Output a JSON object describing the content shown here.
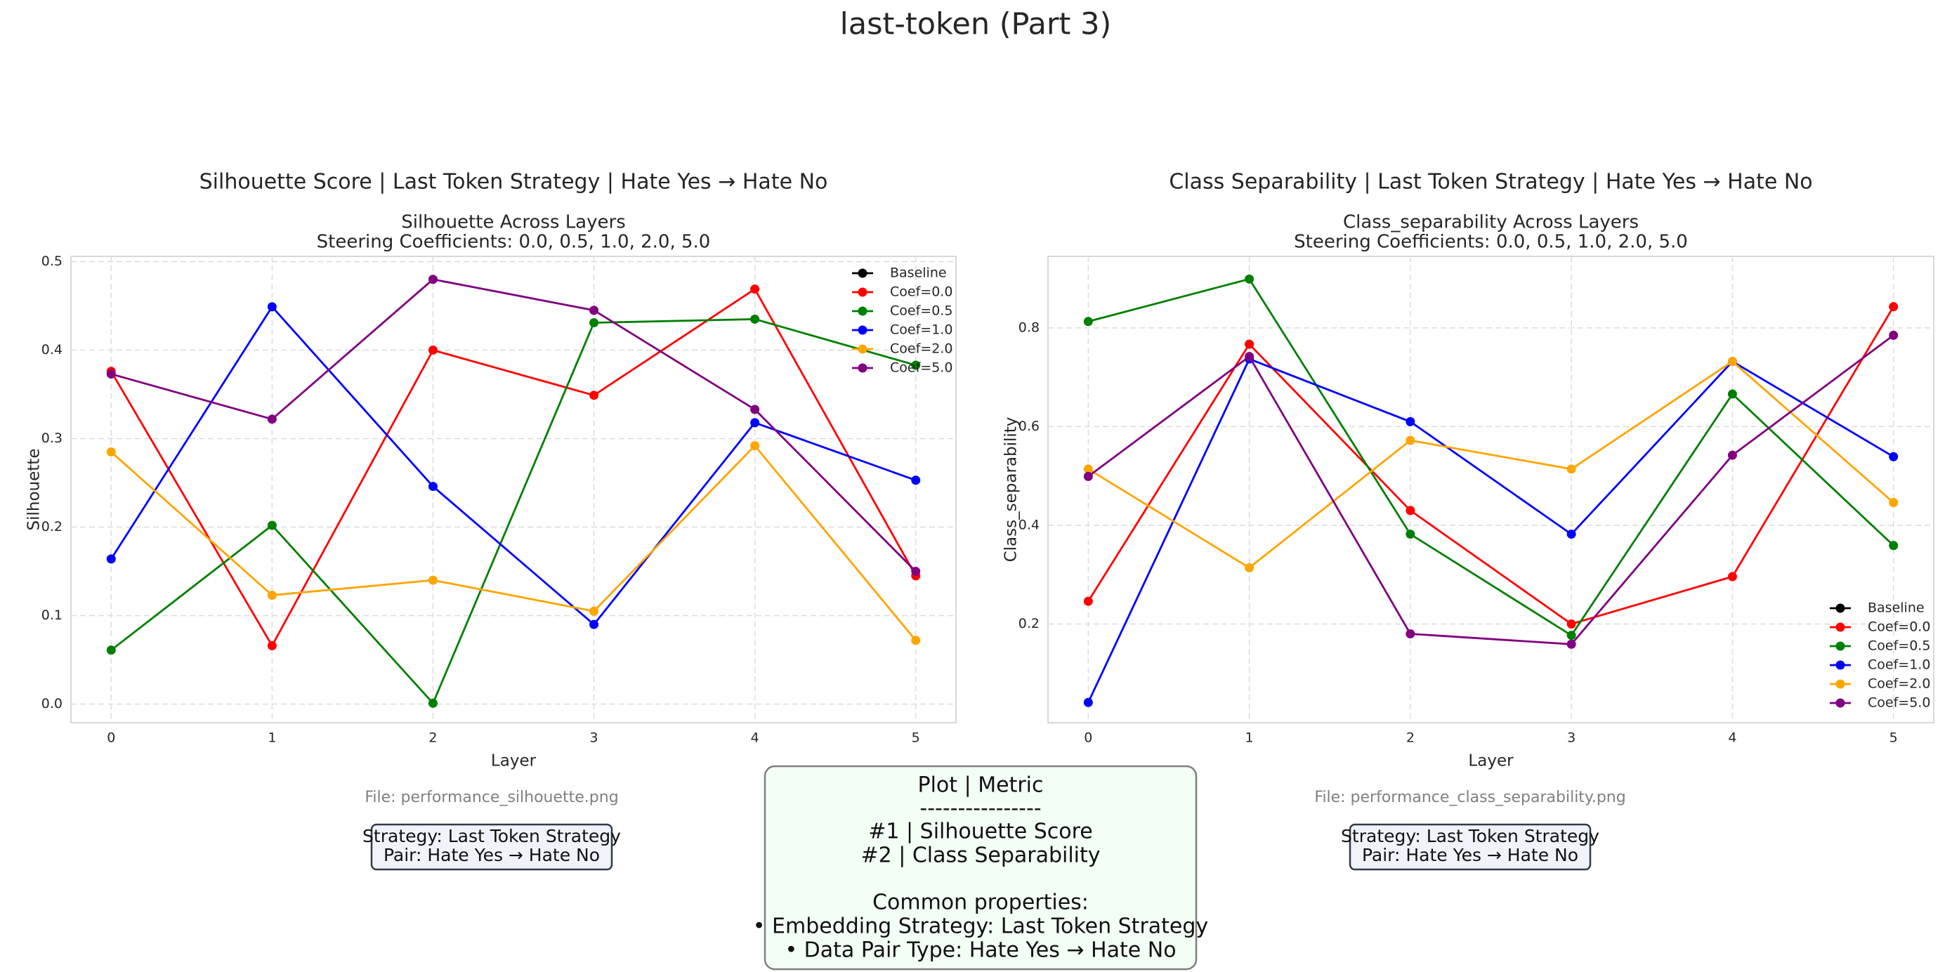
{
  "page_title": "last-token (Part 3)",
  "chart_data": [
    {
      "type": "line",
      "title": "Silhouette Score | Last Token Strategy | Hate Yes → Hate No",
      "subtitle": [
        "Silhouette Across Layers",
        "Steering Coefficients: 0.0, 0.5, 1.0, 2.0, 5.0"
      ],
      "xlabel": "Layer",
      "ylabel": "Silhouette",
      "x": [
        0,
        1,
        2,
        3,
        4,
        5
      ],
      "xlim": [
        -0.25,
        5.25
      ],
      "xticks": [
        0,
        1,
        2,
        3,
        4,
        5
      ],
      "ylim": [
        -0.021,
        0.506
      ],
      "yticks": [
        {
          "value": 0,
          "label": "0.0"
        },
        0.1,
        0.2,
        0.3,
        0.4,
        0.5
      ],
      "grid": true,
      "legend": "upper right",
      "series": [
        {
          "name": "Baseline",
          "color": "#000000",
          "values": [
            null,
            null,
            null,
            null,
            null,
            null
          ]
        },
        {
          "name": "Coef=0.0",
          "color": "#ff0000",
          "values": [
            0.376,
            0.066,
            0.4,
            0.349,
            0.469,
            0.145
          ]
        },
        {
          "name": "Coef=0.5",
          "color": "#008000",
          "values": [
            0.061,
            0.202,
            0.001,
            0.431,
            0.435,
            0.383
          ]
        },
        {
          "name": "Coef=1.0",
          "color": "#0000ff",
          "values": [
            0.164,
            0.449,
            0.246,
            0.09,
            0.318,
            0.253
          ]
        },
        {
          "name": "Coef=2.0",
          "color": "#ffa500",
          "values": [
            0.285,
            0.123,
            0.14,
            0.105,
            0.292,
            0.072
          ]
        },
        {
          "name": "Coef=5.0",
          "color": "#800080",
          "values": [
            0.373,
            0.322,
            0.48,
            0.445,
            0.333,
            0.15
          ]
        }
      ]
    },
    {
      "type": "line",
      "title": "Class Separability | Last Token Strategy | Hate Yes → Hate No",
      "subtitle": [
        "Class_separability Across Layers",
        "Steering Coefficients: 0.0, 0.5, 1.0, 2.0, 5.0"
      ],
      "xlabel": "Layer",
      "ylabel": "Class_separability",
      "x": [
        0,
        1,
        2,
        3,
        4,
        5
      ],
      "xlim": [
        -0.25,
        5.25
      ],
      "xticks": [
        0,
        1,
        2,
        3,
        4,
        5
      ],
      "ylim": [
        0,
        0.945
      ],
      "yticks": [
        0.2,
        0.4,
        0.6,
        0.8
      ],
      "grid": true,
      "legend": "lower right",
      "series": [
        {
          "name": "Baseline",
          "color": "#000000",
          "values": [
            null,
            null,
            null,
            null,
            null,
            null
          ]
        },
        {
          "name": "Coef=0.0",
          "color": "#ff0000",
          "values": [
            0.246,
            0.767,
            0.43,
            0.2,
            0.296,
            0.843
          ]
        },
        {
          "name": "Coef=0.5",
          "color": "#008000",
          "values": [
            0.813,
            0.899,
            0.382,
            0.177,
            0.666,
            0.359
          ]
        },
        {
          "name": "Coef=1.0",
          "color": "#0000ff",
          "values": [
            0.041,
            0.737,
            0.61,
            0.382,
            0.732,
            0.539
          ]
        },
        {
          "name": "Coef=2.0",
          "color": "#ffa500",
          "values": [
            0.514,
            0.314,
            0.572,
            0.514,
            0.732,
            0.446
          ]
        },
        {
          "name": "Coef=5.0",
          "color": "#800080",
          "values": [
            0.499,
            0.742,
            0.18,
            0.159,
            0.542,
            0.785
          ]
        }
      ]
    }
  ],
  "footers": [
    {
      "file": "File: performance_silhouette.png",
      "info": [
        "Strategy: Last Token Strategy",
        "Pair: Hate Yes → Hate No"
      ]
    },
    {
      "file": "File: performance_class_separability.png",
      "info": [
        "Strategy: Last Token Strategy",
        "Pair: Hate Yes → Hate No"
      ]
    }
  ],
  "summary": {
    "header": "Plot | Metric",
    "separator": "----------------",
    "rows": [
      "#1 | Silhouette Score",
      "#2 | Class Separability"
    ],
    "common_header": "Common properties:",
    "common_items": [
      "• Embedding Strategy: Last Token Strategy",
      "• Data Pair Type: Hate Yes → Hate No"
    ]
  }
}
